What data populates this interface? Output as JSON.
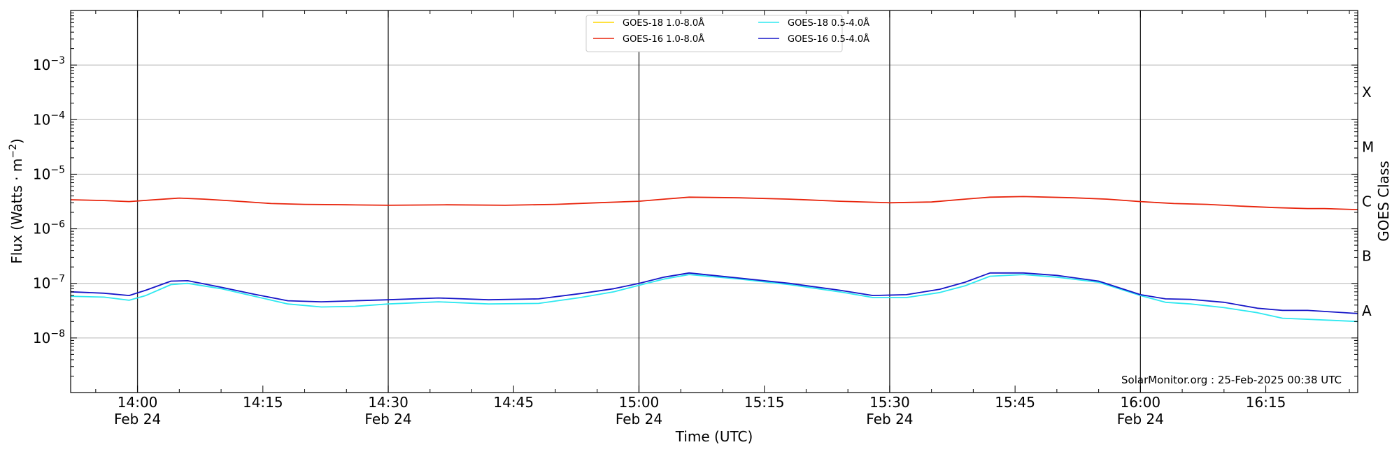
{
  "chart_data": {
    "type": "line",
    "xlabel": "Time (UTC)",
    "ylabel_main": "Flux (Watts · m",
    "ylabel_exp": "−2",
    "ylabel_close": ")",
    "right_label": "GOES Class",
    "credit": "SolarMonitor.org : 25-Feb-2025 00:38 UTC",
    "yscale": "log",
    "ylim": [
      1e-09,
      0.01
    ],
    "xlim": [
      "13:52",
      "16:26"
    ],
    "grid": "horizontal gridlines at each decade; vertical lines at 30-minute marks",
    "legend_position": "top-center",
    "y_ticks": [
      {
        "mantissa": "10",
        "exp": "−3",
        "value": 0.001
      },
      {
        "mantissa": "10",
        "exp": "−4",
        "value": 0.0001
      },
      {
        "mantissa": "10",
        "exp": "−5",
        "value": 1e-05
      },
      {
        "mantissa": "10",
        "exp": "−6",
        "value": 1e-06
      },
      {
        "mantissa": "10",
        "exp": "−7",
        "value": 1e-07
      },
      {
        "mantissa": "10",
        "exp": "−8",
        "value": 1e-08
      }
    ],
    "x_ticks": [
      {
        "time": "14:00",
        "date": "Feb 24"
      },
      {
        "time": "14:15",
        "date": ""
      },
      {
        "time": "14:30",
        "date": "Feb 24"
      },
      {
        "time": "14:45",
        "date": ""
      },
      {
        "time": "15:00",
        "date": "Feb 24"
      },
      {
        "time": "15:15",
        "date": ""
      },
      {
        "time": "15:30",
        "date": "Feb 24"
      },
      {
        "time": "15:45",
        "date": ""
      },
      {
        "time": "16:00",
        "date": "Feb 24"
      },
      {
        "time": "16:15",
        "date": ""
      }
    ],
    "goes_classes": [
      {
        "label": "X",
        "value": 0.000316
      },
      {
        "label": "M",
        "value": 3.16e-05
      },
      {
        "label": "C",
        "value": 3.16e-06
      },
      {
        "label": "B",
        "value": 3.16e-07
      },
      {
        "label": "A",
        "value": 3.16e-08
      }
    ],
    "series": [
      {
        "name": "GOES-18 1.0-8.0Å",
        "color": "#ffd700",
        "x": [],
        "values": []
      },
      {
        "name": "GOES-16 1.0-8.0Å",
        "color": "#e8240c",
        "x": [
          "13:52",
          "13:56",
          "13:59",
          "14:02",
          "14:05",
          "14:08",
          "14:12",
          "14:16",
          "14:20",
          "14:25",
          "14:30",
          "14:37",
          "14:44",
          "14:50",
          "14:55",
          "15:00",
          "15:03",
          "15:06",
          "15:12",
          "15:18",
          "15:24",
          "15:30",
          "15:35",
          "15:39",
          "15:42",
          "15:46",
          "15:52",
          "15:56",
          "16:00",
          "16:04",
          "16:08",
          "16:12",
          "16:16",
          "16:20",
          "16:22",
          "16:26"
        ],
        "values": [
          3.4e-06,
          3.3e-06,
          3.15e-06,
          3.4e-06,
          3.65e-06,
          3.5e-06,
          3.2e-06,
          2.9e-06,
          2.8e-06,
          2.75e-06,
          2.7e-06,
          2.75e-06,
          2.7e-06,
          2.8e-06,
          3e-06,
          3.2e-06,
          3.5e-06,
          3.8e-06,
          3.7e-06,
          3.5e-06,
          3.2e-06,
          3e-06,
          3.1e-06,
          3.5e-06,
          3.8e-06,
          3.9e-06,
          3.7e-06,
          3.5e-06,
          3.15e-06,
          2.9e-06,
          2.8e-06,
          2.6e-06,
          2.45e-06,
          2.35e-06,
          2.35e-06,
          2.25e-06
        ]
      },
      {
        "name": "GOES-18 0.5-4.0Å",
        "color": "#2ee8f0",
        "x": [
          "13:52",
          "13:56",
          "13:59",
          "14:01",
          "14:04",
          "14:06",
          "14:10",
          "14:14",
          "14:18",
          "14:22",
          "14:26",
          "14:30",
          "14:36",
          "14:42",
          "14:48",
          "14:53",
          "14:57",
          "15:00",
          "15:03",
          "15:06",
          "15:12",
          "15:18",
          "15:24",
          "15:28",
          "15:32",
          "15:36",
          "15:39",
          "15:42",
          "15:46",
          "15:50",
          "15:55",
          "16:00",
          "16:03",
          "16:06",
          "16:10",
          "16:14",
          "16:17",
          "16:20",
          "16:23",
          "16:26"
        ],
        "values": [
          5.8e-08,
          5.6e-08,
          4.9e-08,
          6e-08,
          9.5e-08,
          1e-07,
          8e-08,
          5.8e-08,
          4.2e-08,
          3.7e-08,
          3.8e-08,
          4.2e-08,
          4.6e-08,
          4.2e-08,
          4.3e-08,
          5.5e-08,
          7e-08,
          9.2e-08,
          1.2e-07,
          1.45e-07,
          1.2e-07,
          9.5e-08,
          7e-08,
          5.5e-08,
          5.5e-08,
          6.8e-08,
          9e-08,
          1.35e-07,
          1.45e-07,
          1.3e-07,
          1.05e-07,
          6e-08,
          4.5e-08,
          4.2e-08,
          3.6e-08,
          2.9e-08,
          2.3e-08,
          2.2e-08,
          2.1e-08,
          2e-08
        ]
      },
      {
        "name": "GOES-16 0.5-4.0Å",
        "color": "#1616c8",
        "x": [
          "13:52",
          "13:56",
          "13:59",
          "14:01",
          "14:04",
          "14:06",
          "14:10",
          "14:14",
          "14:18",
          "14:22",
          "14:26",
          "14:30",
          "14:36",
          "14:42",
          "14:48",
          "14:53",
          "14:57",
          "15:00",
          "15:03",
          "15:06",
          "15:12",
          "15:18",
          "15:24",
          "15:28",
          "15:32",
          "15:36",
          "15:39",
          "15:42",
          "15:46",
          "15:50",
          "15:55",
          "16:00",
          "16:03",
          "16:06",
          "16:10",
          "16:14",
          "16:17",
          "16:20",
          "16:23",
          "16:26"
        ],
        "values": [
          7e-08,
          6.6e-08,
          6e-08,
          7.5e-08,
          1.1e-07,
          1.12e-07,
          8.5e-08,
          6.3e-08,
          4.8e-08,
          4.6e-08,
          4.8e-08,
          5e-08,
          5.4e-08,
          5e-08,
          5.2e-08,
          6.5e-08,
          8e-08,
          1e-07,
          1.3e-07,
          1.55e-07,
          1.25e-07,
          1e-07,
          7.5e-08,
          6e-08,
          6.2e-08,
          7.8e-08,
          1.05e-07,
          1.55e-07,
          1.55e-07,
          1.4e-07,
          1.1e-07,
          6.2e-08,
          5.2e-08,
          5.1e-08,
          4.5e-08,
          3.5e-08,
          3.2e-08,
          3.2e-08,
          3e-08,
          2.8e-08
        ]
      }
    ]
  }
}
